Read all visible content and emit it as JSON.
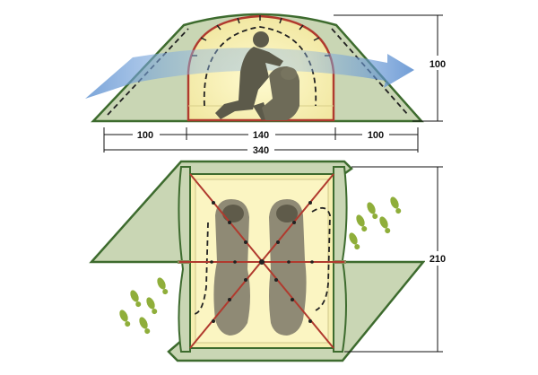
{
  "dimensions": {
    "side_height": "100",
    "vestibule_left": "100",
    "inner_width": "140",
    "vestibule_right": "100",
    "total_length": "340",
    "inner_length": "210"
  },
  "colors": {
    "fly_fill": "#c9d6b4",
    "fly_outline": "#3d6b2e",
    "inner_fill": "#f6efb0",
    "pole": "#b03a2e",
    "airflow": "#5b8fd0",
    "footprint": "#8fae3a",
    "sleeping_bag": "#8f8a75",
    "dimension_line": "#111111"
  },
  "icons": [
    "airflow-arrow-icon",
    "person-silhouette-icon",
    "sleeping-bag-icon",
    "footprints-icon"
  ]
}
